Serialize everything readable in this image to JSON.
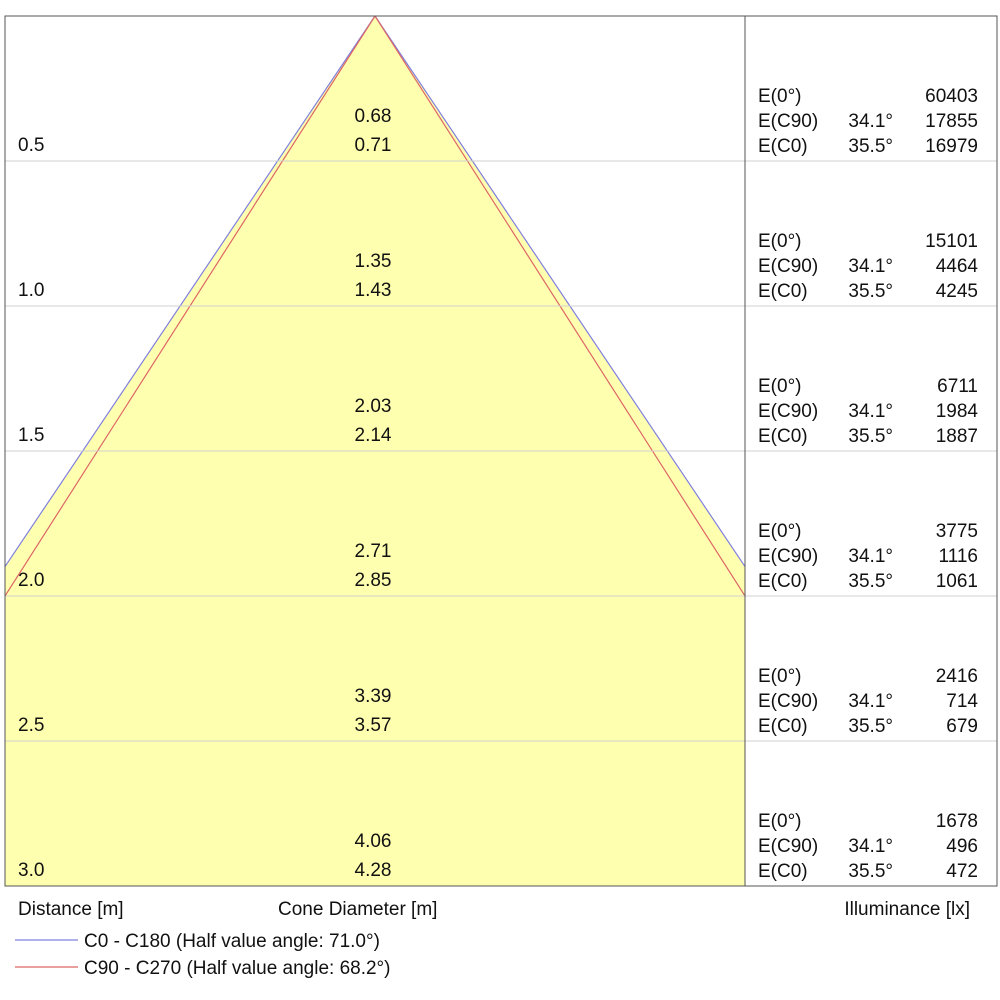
{
  "chart_data": {
    "type": "cone-diagram",
    "xlabel": "Distance [m]",
    "center_label": "Cone Diameter [m]",
    "right_label": "Illuminance [lx]",
    "series": [
      {
        "name": "C0 - C180 (Half value angle: 71.0°)",
        "color": "#8080dd",
        "half_angle": 71.0
      },
      {
        "name": "C90 - C270 (Half value angle: 68.2°)",
        "color": "#dd6666",
        "half_angle": 68.2
      }
    ],
    "rows": [
      {
        "distance": "0.5",
        "diam_c90": "0.68",
        "diam_c0": "0.71",
        "e0_label": "E(0°)",
        "e0": "60403",
        "ec90_label": "E(C90)",
        "ec90_angle": "34.1°",
        "ec90": "17855",
        "ec0_label": "E(C0)",
        "ec0_angle": "35.5°",
        "ec0": "16979"
      },
      {
        "distance": "1.0",
        "diam_c90": "1.35",
        "diam_c0": "1.43",
        "e0_label": "E(0°)",
        "e0": "15101",
        "ec90_label": "E(C90)",
        "ec90_angle": "34.1°",
        "ec90": "4464",
        "ec0_label": "E(C0)",
        "ec0_angle": "35.5°",
        "ec0": "4245"
      },
      {
        "distance": "1.5",
        "diam_c90": "2.03",
        "diam_c0": "2.14",
        "e0_label": "E(0°)",
        "e0": "6711",
        "ec90_label": "E(C90)",
        "ec90_angle": "34.1°",
        "ec90": "1984",
        "ec0_label": "E(C0)",
        "ec0_angle": "35.5°",
        "ec0": "1887"
      },
      {
        "distance": "2.0",
        "diam_c90": "2.71",
        "diam_c0": "2.85",
        "e0_label": "E(0°)",
        "e0": "3775",
        "ec90_label": "E(C90)",
        "ec90_angle": "34.1°",
        "ec90": "1116",
        "ec0_label": "E(C0)",
        "ec0_angle": "35.5°",
        "ec0": "1061"
      },
      {
        "distance": "2.5",
        "diam_c90": "3.39",
        "diam_c0": "3.57",
        "e0_label": "E(0°)",
        "e0": "2416",
        "ec90_label": "E(C90)",
        "ec90_angle": "34.1°",
        "ec90": "714",
        "ec0_label": "E(C0)",
        "ec0_angle": "35.5°",
        "ec0": "679"
      },
      {
        "distance": "3.0",
        "diam_c90": "4.06",
        "diam_c0": "4.28",
        "e0_label": "E(0°)",
        "e0": "1678",
        "ec90_label": "E(C90)",
        "ec90_angle": "34.1°",
        "ec90": "496",
        "ec0_label": "E(C0)",
        "ec0_angle": "35.5°",
        "ec0": "472"
      }
    ],
    "colors": {
      "fill": "#ffffb0",
      "grid": "#d0d0d0",
      "border": "#555555"
    }
  }
}
